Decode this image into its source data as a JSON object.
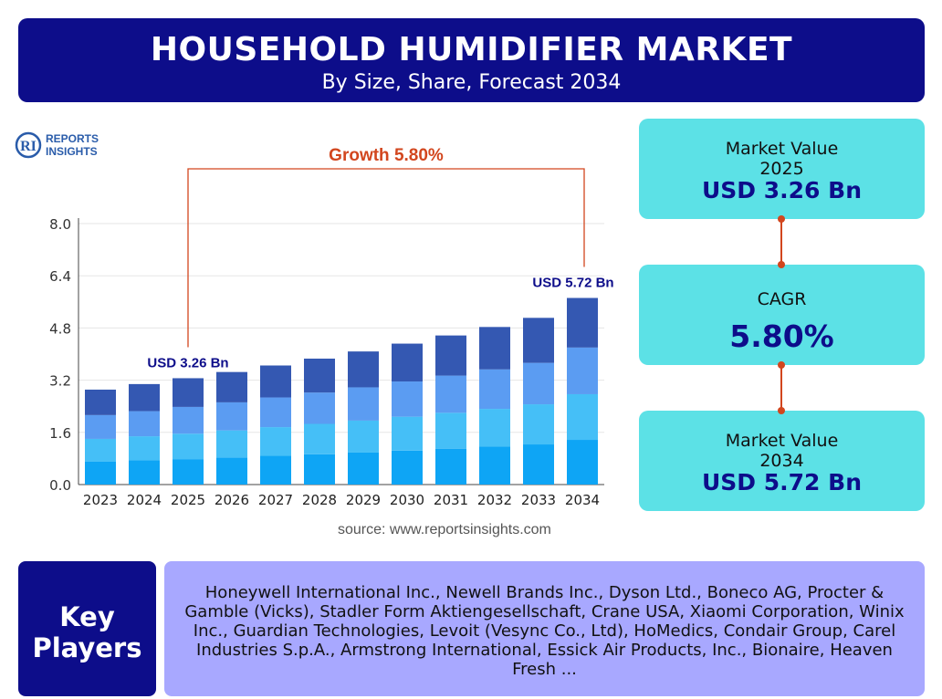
{
  "header": {
    "title": "HOUSEHOLD HUMIDIFIER MARKET",
    "subtitle": "By Size, Share, Forecast 2034"
  },
  "logo": {
    "line1": "REPORTS",
    "line2": "INSIGHTS",
    "mark": "RI"
  },
  "chart_data": {
    "type": "bar",
    "stacked": true,
    "categories": [
      "2023",
      "2024",
      "2025",
      "2026",
      "2027",
      "2028",
      "2029",
      "2030",
      "2031",
      "2032",
      "2033",
      "2034"
    ],
    "totals": [
      2.91,
      3.08,
      3.26,
      3.45,
      3.65,
      3.86,
      4.08,
      4.32,
      4.57,
      4.83,
      5.11,
      5.72
    ],
    "series": [
      {
        "values": [
          0.7,
          0.74,
          0.78,
          0.83,
          0.88,
          0.93,
          0.98,
          1.04,
          1.1,
          1.16,
          1.23,
          1.37
        ]
      },
      {
        "values": [
          0.7,
          0.74,
          0.78,
          0.83,
          0.88,
          0.93,
          0.98,
          1.04,
          1.1,
          1.16,
          1.23,
          1.4
        ]
      },
      {
        "values": [
          0.73,
          0.77,
          0.82,
          0.86,
          0.91,
          0.96,
          1.02,
          1.08,
          1.14,
          1.21,
          1.27,
          1.43
        ]
      },
      {
        "values": [
          0.78,
          0.83,
          0.88,
          0.93,
          0.98,
          1.04,
          1.1,
          1.16,
          1.23,
          1.3,
          1.38,
          1.52
        ]
      }
    ],
    "series_colors": [
      "#0ea5f5",
      "#45bff7",
      "#5b9cf2",
      "#3458b2"
    ],
    "yticks": [
      "0.0",
      "1.6",
      "3.2",
      "4.8",
      "6.4",
      "8.0"
    ],
    "ylim": [
      0,
      8.0
    ],
    "grid": true,
    "annotations": [
      {
        "category": "2025",
        "label": "USD 3.26 Bn"
      },
      {
        "category": "2034",
        "label": "USD 5.72 Bn"
      }
    ],
    "growth_label": "Growth 5.80%",
    "growth_color": "#d2461e"
  },
  "source": "source: www.reportsinsights.com",
  "cards": {
    "value_2025": {
      "label": "Market Value",
      "year": "2025",
      "value": "USD 3.26 Bn"
    },
    "cagr": {
      "label": "CAGR",
      "value": "5.80%"
    },
    "value_2034": {
      "label": "Market Value",
      "year": "2034",
      "value": "USD 5.72 Bn"
    }
  },
  "key_players": {
    "heading_line1": "Key",
    "heading_line2": "Players",
    "text": "Honeywell International Inc., Newell Brands Inc., Dyson Ltd., Boneco AG, Procter & Gamble (Vicks), Stadler Form Aktiengesellschaft, Crane USA, Xiaomi Corporation, Winix Inc., Guardian Technologies, Levoit (Vesync Co., Ltd), HoMedics, Condair Group, Carel Industries S.p.A., Armstrong International, Essick Air Products, Inc., Bionaire, Heaven Fresh ..."
  },
  "colors": {
    "navy": "#0d0d8a",
    "cyan": "#5ce1e6",
    "lavender": "#a8a8ff",
    "connector": "#d2461e"
  }
}
